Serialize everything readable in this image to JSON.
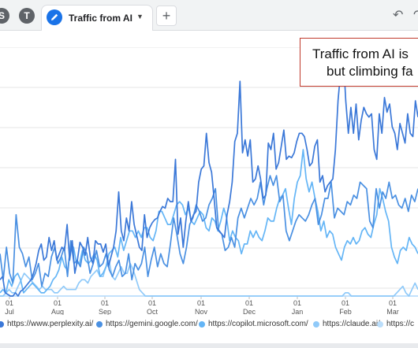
{
  "tabs": {
    "pinned": [
      "S",
      "T"
    ],
    "active_label": "Traffic from AI",
    "caret": "▼",
    "add_label": "+"
  },
  "toolbar": {
    "undo": "↶",
    "redo": "↷"
  },
  "callout": {
    "line1": "Traffic from AI is",
    "line2": "but climbing fa"
  },
  "chart_data": {
    "type": "line",
    "x_tick_labels": [
      [
        "01",
        "Jul"
      ],
      [
        "01",
        "Aug"
      ],
      [
        "01",
        "Sep"
      ],
      [
        "01",
        "Oct"
      ],
      [
        "01",
        "Nov"
      ],
      [
        "01",
        "Dec"
      ],
      [
        "01",
        "Jan"
      ],
      [
        "01",
        "Feb"
      ],
      [
        "01",
        "Mar"
      ]
    ],
    "grid": true,
    "legend_position": "bottom",
    "series": [
      {
        "name": "https://www.perplexity.ai/",
        "color": "#3b78d8",
        "values": [
          10,
          12,
          2,
          1,
          0,
          0,
          2,
          0,
          3,
          4,
          6,
          8,
          10,
          14,
          20,
          28,
          32,
          22,
          24,
          36,
          28,
          34,
          22,
          26,
          30,
          28,
          44,
          22,
          34,
          14,
          22,
          33,
          30,
          25,
          36,
          24,
          20,
          34,
          32,
          32,
          27,
          32,
          18,
          24,
          30,
          40,
          64,
          40,
          34,
          48,
          40,
          58,
          44,
          37,
          30,
          28,
          50,
          36,
          42,
          45,
          47,
          48,
          52,
          55,
          54,
          60,
          58,
          58,
          84,
          38,
          48,
          30,
          46,
          58,
          46,
          50,
          52,
          70,
          78,
          80,
          100,
          82,
          76,
          60,
          42,
          40,
          38,
          36,
          50,
          58,
          70,
          95,
          100,
          132,
          88,
          96,
          86,
          96,
          70,
          72,
          80,
          72,
          60,
          62,
          94,
          90,
          100,
          78,
          82,
          92,
          102,
          84,
          86,
          85,
          88,
          95,
          100,
          100,
          98,
          90,
          80,
          82,
          92,
          96,
          70,
          74,
          64,
          68,
          70,
          72,
          90,
          120,
          138,
          150,
          120,
          100,
          116,
          100,
          118,
          96,
          108,
          116,
          112,
          110,
          112,
          90,
          84,
          112,
          100,
          122,
          113,
          118,
          104,
          100,
          90,
          106,
          100,
          94,
          112,
          100,
          98,
          120,
          110
        ]
      },
      {
        "name": "https://gemini.google.com/",
        "color": "#4a90e2",
        "values": [
          26,
          10,
          30,
          14,
          8,
          50,
          30,
          26,
          18,
          24,
          10,
          14,
          20,
          6,
          14,
          12,
          24,
          30,
          20,
          24,
          30,
          12,
          34,
          20,
          22,
          18,
          30,
          26,
          14,
          20,
          28,
          18,
          20,
          26,
          16,
          12,
          18,
          22,
          12,
          14,
          26,
          10,
          20,
          16,
          20,
          30,
          12,
          22,
          30,
          18,
          26,
          20,
          18,
          32,
          48,
          38,
          26,
          20,
          30,
          44,
          48,
          56,
          52,
          46,
          48,
          56,
          60,
          66,
          40,
          38,
          28,
          30,
          36,
          30,
          48,
          54,
          48,
          54,
          60,
          56,
          60,
          70,
          56,
          66,
          74,
          68,
          74,
          58,
          62,
          40,
          34,
          40,
          46,
          50,
          48,
          46,
          50,
          56,
          60,
          44,
          50,
          60,
          60,
          70,
          48,
          54,
          52,
          50,
          58,
          56,
          62,
          60,
          70,
          68,
          66,
          46,
          42,
          66,
          54,
          64,
          60,
          70,
          60,
          62,
          56,
          54,
          60,
          52,
          62,
          58,
          66
        ]
      },
      {
        "name": "https://copilot.microsoft.com/",
        "color": "#64b5f6",
        "values": [
          2,
          4,
          2,
          10,
          6,
          12,
          14,
          10,
          2,
          4,
          6,
          8,
          6,
          4,
          2,
          2,
          4,
          6,
          10,
          12,
          16,
          24,
          18,
          16,
          30,
          30,
          20,
          20,
          28,
          22,
          20,
          22,
          26,
          22,
          12,
          14,
          18,
          26,
          28,
          30,
          24,
          36,
          28,
          34,
          40,
          40,
          36,
          40,
          36,
          42,
          42,
          36,
          34,
          40,
          52,
          52,
          48,
          44,
          44,
          50,
          56,
          58,
          56,
          50,
          54,
          46,
          44,
          48,
          52,
          50,
          42,
          40,
          48,
          46,
          40,
          46,
          54,
          48,
          34,
          40,
          36,
          34,
          26,
          32,
          32,
          40,
          36,
          40,
          36,
          34,
          40,
          48,
          46,
          46,
          54,
          60,
          62,
          66,
          54,
          44,
          60,
          70,
          74,
          90,
          72,
          64,
          70,
          60,
          52,
          40,
          46,
          36,
          40,
          38,
          30,
          26,
          22,
          30,
          34,
          32,
          36,
          32,
          34,
          40,
          42,
          38,
          36,
          44,
          50,
          66,
          60,
          52,
          46,
          30,
          24,
          20,
          28,
          30,
          28,
          36,
          32,
          30,
          26
        ]
      },
      {
        "name": "https://claude.ai/",
        "color": "#90caf9",
        "values": [
          0,
          0,
          2,
          4,
          2,
          2,
          6,
          10,
          14,
          12,
          10,
          8,
          6,
          4,
          6,
          4,
          4,
          4,
          2,
          2,
          4,
          6,
          4,
          4,
          4,
          4,
          8,
          10,
          10,
          8,
          12,
          14,
          16,
          12,
          12,
          18,
          22,
          12,
          10,
          14,
          18,
          14,
          14,
          20,
          16,
          10,
          4,
          2,
          0,
          0,
          0,
          0,
          0,
          0,
          0,
          0,
          0,
          0,
          0,
          0,
          0,
          0,
          0,
          0,
          0,
          0,
          0,
          0,
          0,
          0,
          0,
          0,
          0,
          0,
          0,
          0,
          0,
          0,
          0,
          0,
          0,
          0,
          0,
          0,
          0,
          0,
          0,
          0,
          0,
          0,
          0,
          0,
          0,
          0,
          0,
          0,
          0,
          0,
          0,
          0,
          0,
          0,
          0,
          0,
          0,
          0,
          0,
          0,
          0,
          0,
          0,
          0,
          0,
          0,
          2,
          2,
          0,
          0,
          0,
          0,
          0,
          0,
          0,
          0,
          0,
          0,
          0,
          0,
          0,
          0,
          0,
          2,
          4,
          6,
          2,
          0,
          4,
          8,
          4
        ]
      },
      {
        "name": "https://c",
        "color": "#bbdefb",
        "values": [
          0,
          0,
          0,
          0,
          0,
          0,
          0,
          0,
          0,
          0,
          0,
          0,
          0,
          0,
          0,
          0,
          0,
          0,
          0,
          0,
          0,
          0,
          0,
          0,
          0,
          0,
          0,
          0,
          0,
          0,
          0,
          0,
          0,
          0,
          0,
          0,
          0,
          0,
          0,
          0,
          0,
          0,
          0,
          0,
          0,
          0,
          0,
          0,
          0,
          0,
          0,
          0,
          0,
          0,
          0,
          0,
          0,
          0,
          0,
          0,
          0,
          0,
          0,
          0,
          0,
          0,
          0,
          0,
          0,
          0,
          0,
          0,
          0,
          0,
          0,
          0,
          0,
          0,
          0,
          0,
          0,
          0,
          0,
          0,
          0,
          0,
          0,
          0,
          0,
          0,
          0,
          0,
          0,
          0,
          0,
          0,
          0,
          0,
          0,
          0,
          0,
          0,
          0,
          0,
          0,
          0,
          0,
          0,
          0,
          0,
          0,
          0,
          0,
          0,
          0,
          0,
          0,
          0,
          0,
          0,
          0,
          0,
          0,
          0,
          0,
          0,
          0,
          0,
          0,
          0,
          0,
          0,
          0,
          0,
          0,
          0,
          0,
          0,
          0,
          0,
          0,
          0
        ]
      }
    ]
  }
}
